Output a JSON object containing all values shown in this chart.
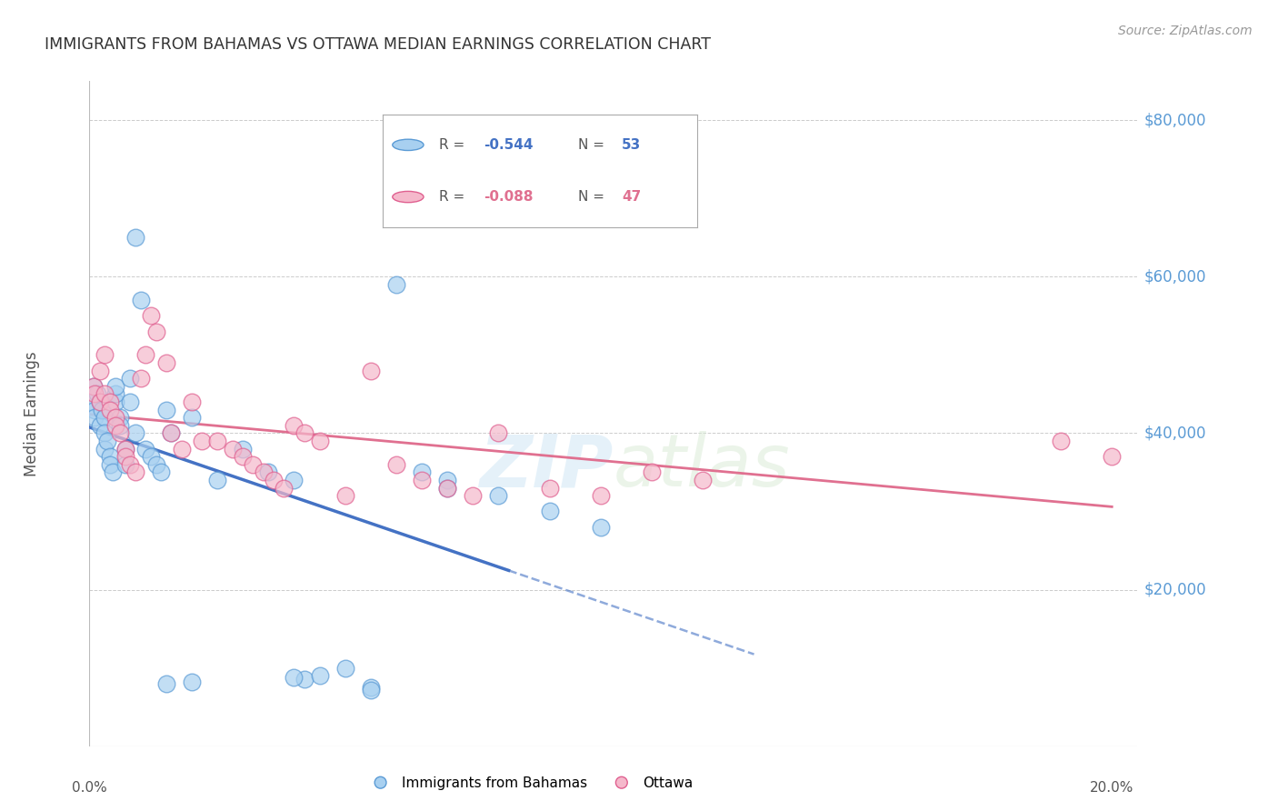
{
  "title": "IMMIGRANTS FROM BAHAMAS VS OTTAWA MEDIAN EARNINGS CORRELATION CHART",
  "source": "Source: ZipAtlas.com",
  "ylabel": "Median Earnings",
  "y_ticks": [
    0,
    20000,
    40000,
    60000,
    80000
  ],
  "y_tick_labels": [
    "",
    "$20,000",
    "$40,000",
    "$60,000",
    "$80,000"
  ],
  "xlim": [
    0.0,
    0.205
  ],
  "ylim": [
    0,
    85000
  ],
  "blue_fill": "#a8d0f0",
  "blue_edge": "#5b9bd5",
  "pink_fill": "#f5b8cb",
  "pink_edge": "#e06090",
  "regression_blue": "#4472c4",
  "regression_pink": "#e07090",
  "watermark": "ZIPatlas",
  "legend_label_blue": "Immigrants from Bahamas",
  "legend_label_pink": "Ottawa",
  "grid_color": "#cccccc",
  "title_color": "#333333",
  "right_label_color": "#5b9bd5",
  "blue_x": [
    0.0005,
    0.0008,
    0.001,
    0.001,
    0.0015,
    0.002,
    0.002,
    0.0025,
    0.003,
    0.003,
    0.003,
    0.0035,
    0.004,
    0.004,
    0.0045,
    0.005,
    0.005,
    0.005,
    0.006,
    0.006,
    0.007,
    0.007,
    0.008,
    0.008,
    0.009,
    0.009,
    0.01,
    0.011,
    0.012,
    0.013,
    0.014,
    0.015,
    0.016,
    0.02,
    0.025,
    0.03,
    0.035,
    0.04,
    0.042,
    0.045,
    0.05,
    0.055,
    0.06,
    0.065,
    0.07,
    0.08,
    0.09,
    0.1,
    0.015,
    0.02,
    0.04,
    0.055,
    0.07
  ],
  "blue_y": [
    44000,
    46000,
    43000,
    42000,
    45000,
    44000,
    41000,
    43000,
    42000,
    40000,
    38000,
    39000,
    37000,
    36000,
    35000,
    44000,
    45000,
    46000,
    42000,
    41000,
    38000,
    36000,
    47000,
    44000,
    65000,
    40000,
    57000,
    38000,
    37000,
    36000,
    35000,
    43000,
    40000,
    42000,
    34000,
    38000,
    35000,
    34000,
    8500,
    9000,
    10000,
    7500,
    59000,
    35000,
    34000,
    32000,
    30000,
    28000,
    8000,
    8200,
    8800,
    7200,
    33000
  ],
  "pink_x": [
    0.0008,
    0.001,
    0.002,
    0.002,
    0.003,
    0.003,
    0.004,
    0.004,
    0.005,
    0.005,
    0.006,
    0.007,
    0.007,
    0.008,
    0.009,
    0.01,
    0.011,
    0.012,
    0.013,
    0.015,
    0.016,
    0.018,
    0.02,
    0.022,
    0.025,
    0.028,
    0.03,
    0.032,
    0.034,
    0.036,
    0.038,
    0.04,
    0.042,
    0.045,
    0.05,
    0.055,
    0.06,
    0.065,
    0.07,
    0.075,
    0.08,
    0.09,
    0.1,
    0.11,
    0.12,
    0.19,
    0.2
  ],
  "pink_y": [
    46000,
    45000,
    48000,
    44000,
    50000,
    45000,
    44000,
    43000,
    42000,
    41000,
    40000,
    38000,
    37000,
    36000,
    35000,
    47000,
    50000,
    55000,
    53000,
    49000,
    40000,
    38000,
    44000,
    39000,
    39000,
    38000,
    37000,
    36000,
    35000,
    34000,
    33000,
    41000,
    40000,
    39000,
    32000,
    48000,
    36000,
    34000,
    33000,
    32000,
    40000,
    33000,
    32000,
    35000,
    34000,
    39000,
    37000
  ]
}
